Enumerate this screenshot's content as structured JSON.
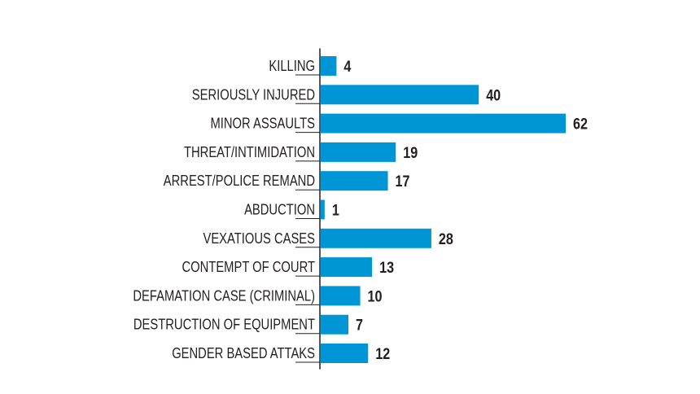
{
  "chart_data": {
    "type": "bar",
    "orientation": "horizontal",
    "categories": [
      "KILLING",
      "SERIOUSLY  INJURED",
      "MINOR ASSAULTS",
      "THREAT/INTIMIDATION",
      "ARREST/POLICE REMAND",
      "ABDUCTION",
      "VEXATIOUS CASES",
      "CONTEMPT OF COURT",
      "DEFAMATION CASE (CRIMINAL)",
      "DESTRUCTION OF EQUIPMENT",
      "GENDER BASED ATTAKS"
    ],
    "values": [
      4,
      40,
      62,
      19,
      17,
      1,
      28,
      13,
      10,
      7,
      12
    ],
    "value_labels": [
      "4",
      "40",
      "62",
      "19",
      "17",
      "1",
      "28",
      "13",
      "10",
      "7",
      "12"
    ],
    "xlim": [
      0,
      62
    ],
    "grid": false,
    "legend": "none",
    "bar_color": "#0096d6",
    "text_color": "#231f20"
  }
}
